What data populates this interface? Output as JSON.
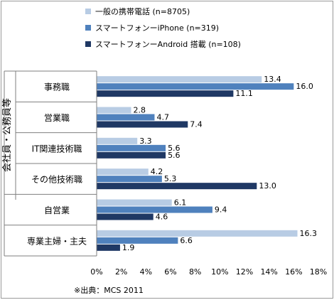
{
  "chart_data": {
    "type": "bar",
    "orientation": "horizontal",
    "vertical_axis_group_label": "会社員・公務員等",
    "categories": [
      "事務職",
      "営業職",
      "IT関連技術職",
      "その他技術職",
      "自営業",
      "専業主婦・主夫"
    ],
    "series": [
      {
        "name": "一般の携帯電話 (n=8705)",
        "color": "#b8cce4",
        "values": [
          13.4,
          2.8,
          3.3,
          4.2,
          6.1,
          16.3
        ]
      },
      {
        "name": "スマートフォンーiPhone (n=319)",
        "color": "#4f81bd",
        "values": [
          16.0,
          4.7,
          5.6,
          5.3,
          9.4,
          6.6
        ]
      },
      {
        "name": "スマートフォンーAndroid 搭載 (n=108)",
        "color": "#1f3864",
        "values": [
          11.1,
          7.4,
          5.6,
          13.0,
          4.6,
          1.9
        ]
      }
    ],
    "value_labels": [
      [
        "13.4",
        "2.8",
        "3.3",
        "4.2",
        "6.1",
        "16.3"
      ],
      [
        "16.0",
        "4.7",
        "5.6",
        "5.3",
        "9.4",
        "6.6"
      ],
      [
        "11.1",
        "7.4",
        "5.6",
        "13.0",
        "4.6",
        "1.9"
      ]
    ],
    "x_ticks": [
      "0%",
      "2%",
      "4%",
      "6%",
      "8%",
      "10%",
      "12%",
      "14%",
      "16%",
      "18%"
    ],
    "xlim": [
      0,
      18
    ],
    "legend_position": "top",
    "grid": false
  },
  "source_note": "※出典：MCS 2011"
}
